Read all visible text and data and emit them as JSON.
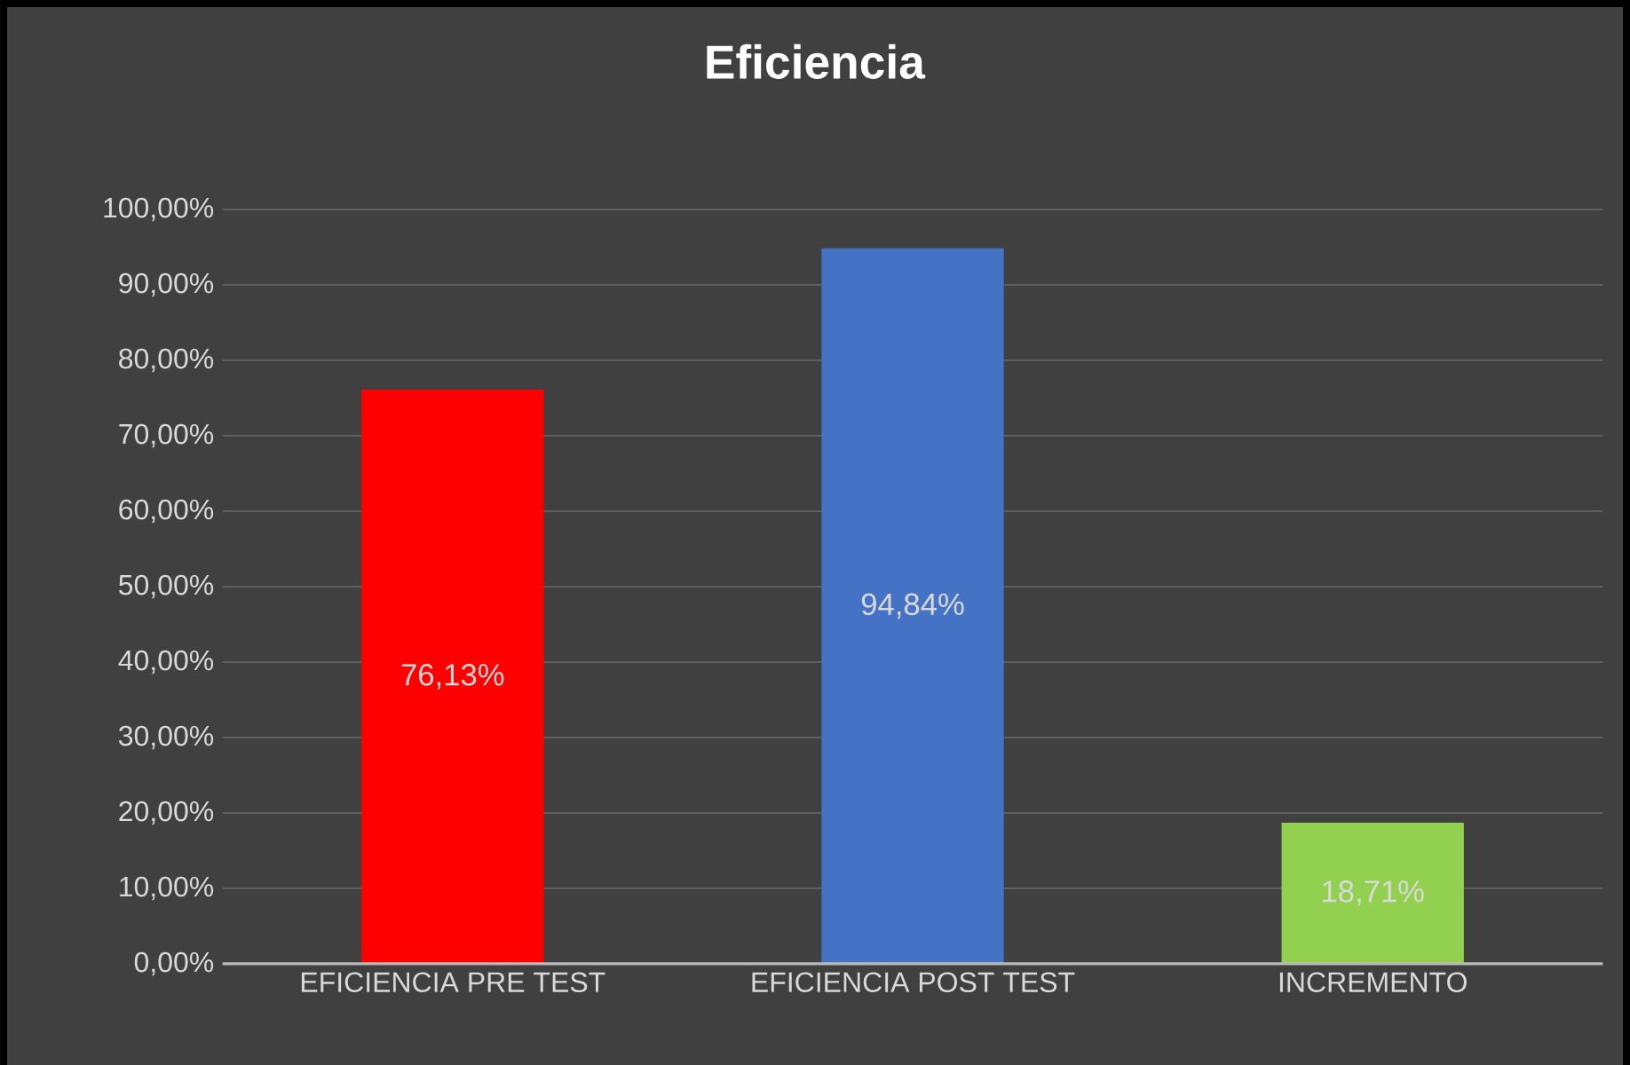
{
  "chart_data": {
    "type": "bar",
    "title": "Eficiencia",
    "categories": [
      "EFICIENCIA PRE TEST",
      "EFICIENCIA POST TEST",
      "INCREMENTO"
    ],
    "values": [
      76.13,
      94.84,
      18.71
    ],
    "colors": [
      "#ff0000",
      "#4472c4",
      "#92d050"
    ],
    "value_labels": [
      "76,13%",
      "94,84%",
      "18,71%"
    ],
    "ylim": [
      0,
      100
    ],
    "yticks": [
      {
        "value": 0,
        "label": "0,00%"
      },
      {
        "value": 10,
        "label": "10,00%"
      },
      {
        "value": 20,
        "label": "20,00%"
      },
      {
        "value": 30,
        "label": "30,00%"
      },
      {
        "value": 40,
        "label": "40,00%"
      },
      {
        "value": 50,
        "label": "50,00%"
      },
      {
        "value": 60,
        "label": "60,00%"
      },
      {
        "value": 70,
        "label": "70,00%"
      },
      {
        "value": 80,
        "label": "80,00%"
      },
      {
        "value": 90,
        "label": "90,00%"
      },
      {
        "value": 100,
        "label": "100,00%"
      }
    ],
    "grid": "y"
  }
}
